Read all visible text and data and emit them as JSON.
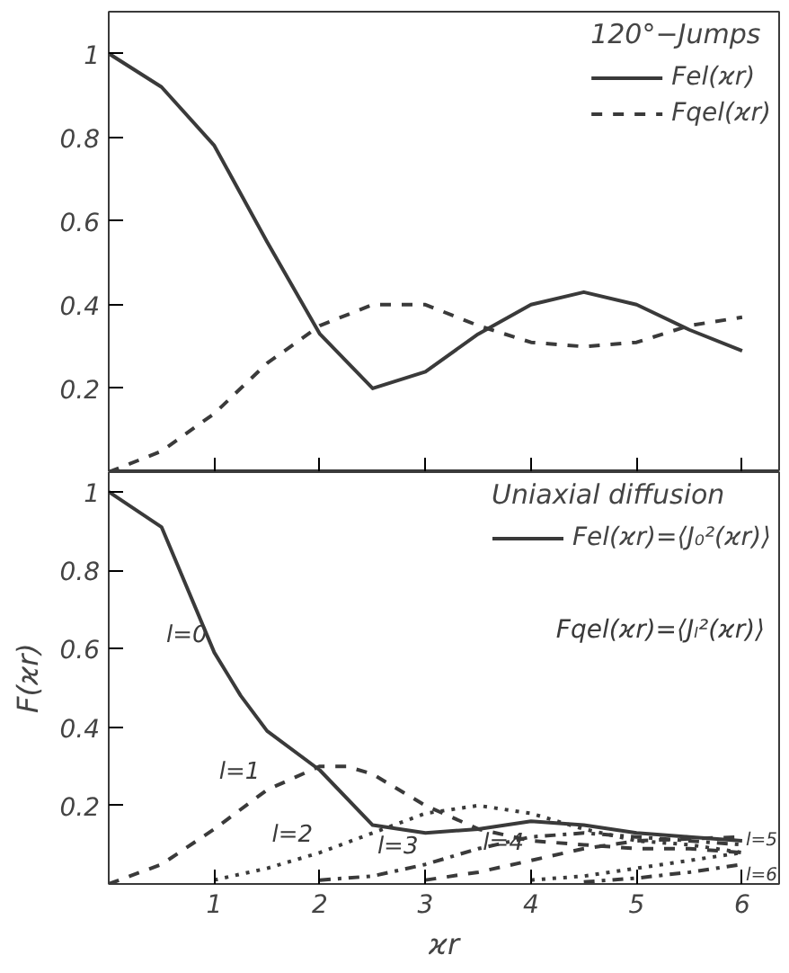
{
  "chart_data": [
    {
      "type": "line",
      "legend_title": "120°−Jumps",
      "legend": "top right",
      "tick_labels": "y",
      "grid": false,
      "x": [
        0,
        0.5,
        1,
        1.5,
        2,
        2.5,
        3,
        3.5,
        4,
        4.5,
        5,
        5.5,
        6
      ],
      "xlim": [
        0,
        6.35
      ],
      "xticks": [
        1,
        2,
        3,
        4,
        5,
        6
      ],
      "ylim": [
        0,
        1.1
      ],
      "yticks": [
        0.2,
        0.4,
        0.6,
        0.8,
        1.0
      ],
      "series": [
        {
          "name": "Fel(ϰr)",
          "color": "#3a3a3a",
          "line_style": "solid",
          "values": [
            1.0,
            0.92,
            0.78,
            0.55,
            0.33,
            0.2,
            0.24,
            0.33,
            0.4,
            0.43,
            0.4,
            0.34,
            0.29
          ]
        },
        {
          "name": "Fqel(ϰr)",
          "color": "#3a3a3a",
          "line_style": "dashed",
          "values": [
            0.0,
            0.05,
            0.14,
            0.26,
            0.35,
            0.4,
            0.4,
            0.35,
            0.31,
            0.3,
            0.31,
            0.35,
            0.37
          ]
        }
      ]
    },
    {
      "type": "line",
      "legend_title": "Uniaxial diffusion",
      "legend": "top right",
      "grid": false,
      "xlabel": "ϰr",
      "ylabel": "F(ϰr)",
      "xlim": [
        0,
        6.35
      ],
      "xticks": [
        1,
        2,
        3,
        4,
        5,
        6
      ],
      "ylim": [
        0,
        1.05
      ],
      "yticks": [
        0.2,
        0.4,
        0.6,
        0.8,
        1.0
      ],
      "series": [
        {
          "name": "Fel(ϰr)=⟨J₀²(ϰr)⟩",
          "color": "#3a3a3a",
          "line_style": "solid",
          "x": [
            0,
            0.5,
            1,
            1.25,
            1.5,
            2,
            2.5,
            3,
            3.5,
            4,
            4.5,
            5,
            5.5,
            6
          ],
          "values": [
            1.0,
            0.91,
            0.59,
            0.48,
            0.39,
            0.29,
            0.15,
            0.13,
            0.14,
            0.16,
            0.15,
            0.13,
            0.12,
            0.11
          ]
        },
        {
          "color": "#3a3a3a",
          "line_style": "dashed",
          "x": [
            0,
            0.5,
            1,
            1.5,
            2,
            2.25,
            2.5,
            3,
            3.5,
            4,
            4.5,
            5,
            5.5,
            6
          ],
          "values": [
            0.0,
            0.05,
            0.14,
            0.24,
            0.3,
            0.3,
            0.28,
            0.2,
            0.14,
            0.11,
            0.1,
            0.09,
            0.09,
            0.08
          ]
        },
        {
          "color": "#3a3a3a",
          "line_style": "dotted",
          "x": [
            1,
            1.5,
            2,
            2.5,
            3,
            3.5,
            4,
            4.5,
            5,
            5.5,
            6
          ],
          "values": [
            0.01,
            0.04,
            0.08,
            0.13,
            0.18,
            0.2,
            0.18,
            0.14,
            0.11,
            0.1,
            0.08
          ]
        },
        {
          "color": "#3a3a3a",
          "line_style": "dashdot",
          "x": [
            2,
            2.5,
            3,
            3.5,
            4,
            4.5,
            5,
            6
          ],
          "values": [
            0.01,
            0.02,
            0.05,
            0.09,
            0.12,
            0.13,
            0.12,
            0.1
          ]
        },
        {
          "color": "#3a3a3a",
          "line_style": "dashed",
          "x": [
            3,
            3.5,
            4,
            4.5,
            5,
            6
          ],
          "values": [
            0.01,
            0.03,
            0.06,
            0.09,
            0.11,
            0.12
          ]
        },
        {
          "color": "#3a3a3a",
          "line_style": "dotted",
          "x": [
            4,
            4.5,
            5,
            5.5,
            6
          ],
          "values": [
            0.01,
            0.02,
            0.04,
            0.06,
            0.08
          ]
        },
        {
          "color": "#3a3a3a",
          "line_style": "dashdot",
          "x": [
            4.5,
            5,
            5.5,
            6
          ],
          "values": [
            0.005,
            0.015,
            0.03,
            0.05
          ]
        }
      ],
      "annotations": [
        "Fqel(ϰr)=⟨Jₗ²(ϰr)⟩",
        {
          "text": "l=0",
          "x": 1,
          "y": 0.59
        },
        {
          "text": "l=1",
          "x": 1.5,
          "y": 0.24
        },
        {
          "text": "l=2",
          "x": 2,
          "y": 0.08
        },
        {
          "text": "l=3",
          "x": 3,
          "y": 0.05
        },
        {
          "text": "l=4",
          "x": 4,
          "y": 0.06
        },
        {
          "text": "l=5",
          "x": 6,
          "y": 0.08
        },
        {
          "text": "l=6",
          "x": 6,
          "y": 0.05
        }
      ]
    }
  ]
}
